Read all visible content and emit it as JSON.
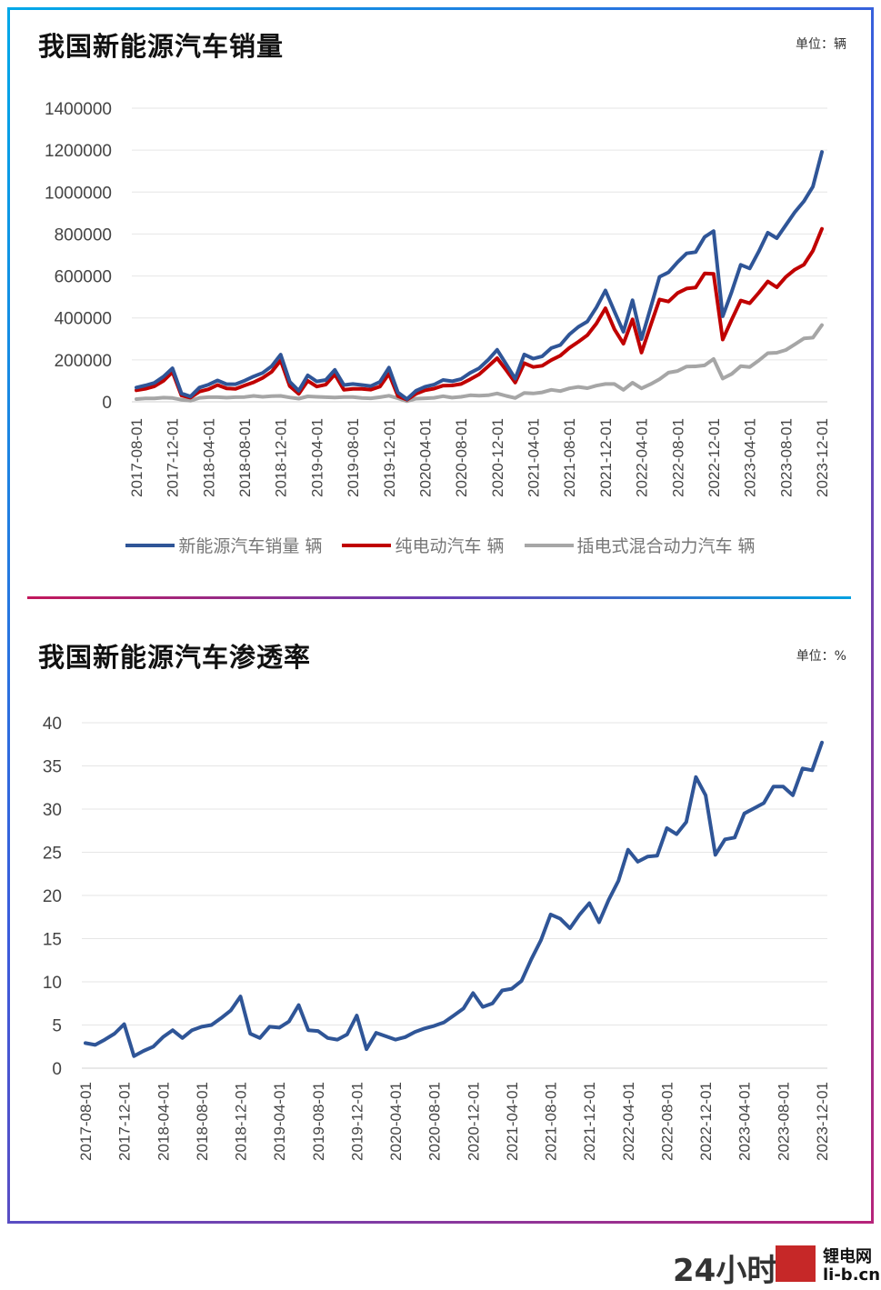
{
  "chart_data": [
    {
      "type": "line",
      "title": "我国新能源汽车销量",
      "unit": "单位：辆",
      "ylim": [
        0,
        1400000
      ],
      "yticks": [
        0,
        200000,
        400000,
        600000,
        800000,
        1000000,
        1200000,
        1400000
      ],
      "xticks": [
        "2017-08-01",
        "2017-12-01",
        "2018-04-01",
        "2018-08-01",
        "2018-12-01",
        "2019-04-01",
        "2019-08-01",
        "2019-12-01",
        "2020-04-01",
        "2020-08-01",
        "2020-12-01",
        "2021-04-01",
        "2021-08-01",
        "2021-12-01",
        "2022-04-01",
        "2022-08-01",
        "2022-12-01",
        "2023-04-01",
        "2023-08-01",
        "2023-12-01"
      ],
      "grid": true,
      "legend_position": "bottom",
      "x": [
        "2017-08",
        "2017-09",
        "2017-10",
        "2017-11",
        "2017-12",
        "2018-01",
        "2018-02",
        "2018-03",
        "2018-04",
        "2018-05",
        "2018-06",
        "2018-07",
        "2018-08",
        "2018-09",
        "2018-10",
        "2018-11",
        "2018-12",
        "2019-01",
        "2019-02",
        "2019-03",
        "2019-04",
        "2019-05",
        "2019-06",
        "2019-07",
        "2019-08",
        "2019-09",
        "2019-10",
        "2019-11",
        "2019-12",
        "2020-01",
        "2020-02",
        "2020-03",
        "2020-04",
        "2020-05",
        "2020-06",
        "2020-07",
        "2020-08",
        "2020-09",
        "2020-10",
        "2020-11",
        "2020-12",
        "2021-01",
        "2021-02",
        "2021-03",
        "2021-04",
        "2021-05",
        "2021-06",
        "2021-07",
        "2021-08",
        "2021-09",
        "2021-10",
        "2021-11",
        "2021-12",
        "2022-01",
        "2022-02",
        "2022-03",
        "2022-04",
        "2022-05",
        "2022-06",
        "2022-07",
        "2022-08",
        "2022-09",
        "2022-10",
        "2022-11",
        "2022-12",
        "2023-01",
        "2023-02",
        "2023-03",
        "2023-04",
        "2023-05",
        "2023-06",
        "2023-07",
        "2023-08",
        "2023-09",
        "2023-10",
        "2023-11",
        "2023-12"
      ],
      "series": [
        {
          "name": "新能源汽车销量 辆",
          "color": "#2f5597",
          "values": [
            68000,
            78000,
            90000,
            120000,
            160000,
            40000,
            25000,
            68000,
            82000,
            102000,
            84000,
            84000,
            101000,
            121000,
            138000,
            170000,
            225000,
            96000,
            53000,
            126000,
            97000,
            104000,
            152000,
            80000,
            85000,
            80000,
            75000,
            95000,
            163000,
            44000,
            13000,
            53000,
            72000,
            82000,
            104000,
            98000,
            109000,
            138000,
            160000,
            200000,
            248000,
            179000,
            110000,
            226000,
            206000,
            217000,
            256000,
            271000,
            321000,
            357000,
            383000,
            450000,
            531000,
            431000,
            334000,
            484000,
            299000,
            447000,
            596000,
            617000,
            666000,
            708000,
            714000,
            786000,
            814000,
            408000,
            525000,
            653000,
            636000,
            717000,
            806000,
            780000,
            842000,
            904000,
            956000,
            1026000,
            1191000
          ]
        },
        {
          "name": "纯电动汽车 辆",
          "color": "#c00000",
          "values": [
            55000,
            62000,
            74000,
            100000,
            142000,
            30000,
            20000,
            49000,
            60000,
            80000,
            64000,
            62000,
            78000,
            93000,
            114000,
            143000,
            197000,
            75000,
            38000,
            100000,
            73000,
            82000,
            131000,
            57000,
            62000,
            62000,
            58000,
            73000,
            134000,
            27000,
            10000,
            38000,
            55000,
            63000,
            77000,
            78000,
            85000,
            107000,
            131000,
            169000,
            208000,
            151000,
            92000,
            184000,
            166000,
            172000,
            199000,
            220000,
            257000,
            286000,
            318000,
            373000,
            446000,
            346000,
            277000,
            393000,
            235000,
            363000,
            488000,
            478000,
            519000,
            540000,
            545000,
            612000,
            610000,
            297000,
            392000,
            483000,
            470000,
            520000,
            574000,
            546000,
            595000,
            630000,
            654000,
            720000,
            825000
          ]
        },
        {
          "name": "插电式混合动力汽车 辆",
          "color": "#a6a6a6",
          "values": [
            13000,
            16000,
            16000,
            20000,
            18000,
            10000,
            5000,
            19000,
            22000,
            22000,
            20000,
            22000,
            23000,
            28000,
            24000,
            27000,
            28000,
            21000,
            15000,
            26000,
            24000,
            22000,
            21000,
            23000,
            23000,
            18000,
            17000,
            22000,
            29000,
            17000,
            3000,
            15000,
            17000,
            19000,
            27000,
            20000,
            24000,
            31000,
            29000,
            31000,
            40000,
            28000,
            18000,
            42000,
            40000,
            45000,
            57000,
            51000,
            64000,
            71000,
            65000,
            77000,
            85000,
            85000,
            57000,
            91000,
            64000,
            84000,
            108000,
            139000,
            147000,
            168000,
            169000,
            174000,
            204000,
            111000,
            133000,
            170000,
            166000,
            197000,
            232000,
            234000,
            247000,
            274000,
            302000,
            306000,
            366000
          ]
        }
      ]
    },
    {
      "type": "line",
      "title": "我国新能源汽车渗透率",
      "unit": "单位：%",
      "ylim": [
        0,
        40
      ],
      "yticks": [
        0,
        5,
        10,
        15,
        20,
        25,
        30,
        35,
        40
      ],
      "xticks": [
        "2017-08-01",
        "2017-12-01",
        "2018-04-01",
        "2018-08-01",
        "2018-12-01",
        "2019-04-01",
        "2019-08-01",
        "2019-12-01",
        "2020-04-01",
        "2020-08-01",
        "2020-12-01",
        "2021-04-01",
        "2021-08-01",
        "2021-12-01",
        "2022-04-01",
        "2022-08-01",
        "2022-12-01",
        "2023-04-01",
        "2023-08-01",
        "2023-12-01"
      ],
      "grid": true,
      "series": [
        {
          "color": "#2f5597",
          "values": [
            2.9,
            2.7,
            3.3,
            4.0,
            5.1,
            1.4,
            2.0,
            2.5,
            3.6,
            4.4,
            3.5,
            4.4,
            4.8,
            5.0,
            5.8,
            6.7,
            8.3,
            4.0,
            3.5,
            4.8,
            4.7,
            5.4,
            7.3,
            4.4,
            4.3,
            3.5,
            3.3,
            3.9,
            6.1,
            2.2,
            4.1,
            3.7,
            3.3,
            3.6,
            4.2,
            4.6,
            4.9,
            5.3,
            6.1,
            6.9,
            8.7,
            7.1,
            7.5,
            9.0,
            9.2,
            10.1,
            12.6,
            14.8,
            17.8,
            17.3,
            16.2,
            17.8,
            19.1,
            16.9,
            19.5,
            21.7,
            25.3,
            23.9,
            24.5,
            24.6,
            27.8,
            27.1,
            28.5,
            33.7,
            31.6,
            24.7,
            26.5,
            26.7,
            29.5,
            30.1,
            30.7,
            32.6,
            32.6,
            31.6,
            34.7,
            34.5,
            37.7
          ]
        }
      ]
    }
  ],
  "watermark": {
    "brand": "24小时",
    "site_cn": "锂电网",
    "site_url": "li-b.cn"
  }
}
